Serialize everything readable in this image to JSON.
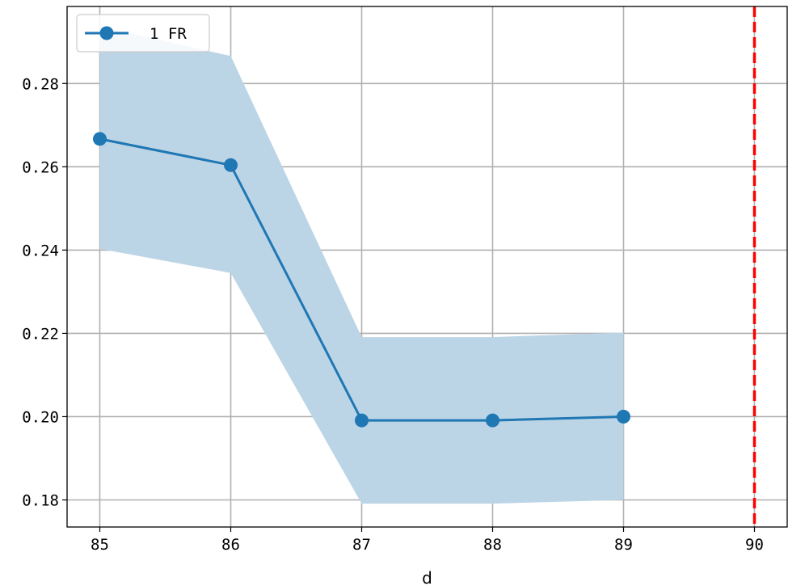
{
  "chart_data": {
    "type": "line",
    "xlabel": "d",
    "ylabel": "",
    "x": [
      85,
      86,
      87,
      88,
      89
    ],
    "series": [
      {
        "name": "1 FR",
        "color": "#1f77b4",
        "marker": "circle",
        "values": [
          0.2667,
          0.2604,
          0.1991,
          0.1991,
          0.2
        ],
        "band_lower": [
          0.2403,
          0.2345,
          0.1791,
          0.1791,
          0.18
        ],
        "band_upper": [
          0.2937,
          0.2866,
          0.2191,
          0.2191,
          0.2202
        ],
        "band_color": "#bcd5e6"
      }
    ],
    "reference_line": {
      "x": 90,
      "color": "#ff0000",
      "style": "dashed"
    },
    "xticks": [
      "85",
      "86",
      "87",
      "88",
      "89",
      "90"
    ],
    "xtick_values": [
      85,
      86,
      87,
      88,
      89,
      90
    ],
    "yticks": [
      "0.18",
      "0.20",
      "0.22",
      "0.24",
      "0.26",
      "0.28"
    ],
    "ytick_values": [
      0.18,
      0.2,
      0.22,
      0.24,
      0.26,
      0.28
    ],
    "xlim": [
      84.75,
      90.25
    ],
    "ylim": [
      0.1735,
      0.2985
    ],
    "grid": true,
    "legend_position": "top-left"
  }
}
